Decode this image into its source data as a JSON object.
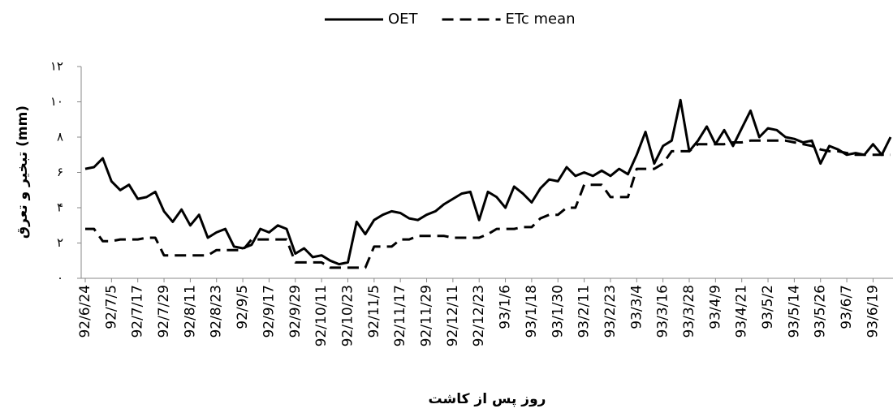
{
  "chart_data": {
    "type": "line",
    "x_label": "روز پس از کاشت",
    "y_label": "تبخیر و تعرق (mm)",
    "legend": "top",
    "categories": [
      "92/6/24",
      null,
      null,
      "92/7/5",
      null,
      null,
      "92/7/17",
      null,
      null,
      "92/7/29",
      null,
      null,
      "92/8/11",
      null,
      null,
      "92/8/23",
      null,
      null,
      "92/9/5",
      null,
      null,
      "92/9/17",
      null,
      null,
      "92/9/29",
      null,
      null,
      "92/10/11",
      null,
      null,
      "92/10/23",
      null,
      null,
      "92/11/5",
      null,
      null,
      "92/11/17",
      null,
      null,
      "92/11/29",
      null,
      null,
      "92/12/11",
      null,
      null,
      "92/12/23",
      null,
      null,
      "93/1/6",
      null,
      null,
      "93/1/18",
      null,
      null,
      "93/1/30",
      null,
      null,
      "93/2/11",
      null,
      null,
      "93/2/23",
      null,
      null,
      "93/3/4",
      null,
      null,
      "93/3/16",
      null,
      null,
      "93/3/28",
      null,
      null,
      "93/4/9",
      null,
      null,
      "93/4/21",
      null,
      null,
      "93/5/2",
      null,
      null,
      "93/5/14",
      null,
      null,
      "93/5/26",
      null,
      null,
      "93/6/7",
      null,
      null,
      "93/6/19",
      null,
      null
    ],
    "series": [
      {
        "name": "OET",
        "color": "#000000",
        "dash": false,
        "values": [
          6.2,
          6.3,
          6.8,
          5.5,
          5.0,
          5.3,
          4.5,
          4.6,
          4.9,
          3.8,
          3.2,
          3.9,
          3.0,
          3.6,
          2.3,
          2.6,
          2.8,
          1.8,
          1.7,
          1.9,
          2.8,
          2.6,
          3.0,
          2.8,
          1.4,
          1.7,
          1.2,
          1.3,
          1.0,
          0.8,
          0.9,
          3.2,
          2.5,
          3.3,
          3.6,
          3.8,
          3.7,
          3.4,
          3.3,
          3.6,
          3.8,
          4.2,
          4.5,
          4.8,
          4.9,
          3.3,
          4.9,
          4.6,
          4.0,
          5.2,
          4.8,
          4.3,
          5.1,
          5.6,
          5.5,
          6.3,
          5.8,
          6.0,
          5.8,
          6.1,
          5.8,
          6.2,
          5.9,
          7.0,
          8.3,
          6.5,
          7.5,
          7.8,
          10.1,
          7.2,
          7.8,
          8.6,
          7.6,
          8.4,
          7.5,
          8.5,
          9.5,
          8.0,
          8.5,
          8.4,
          8.0,
          7.9,
          7.7,
          7.8,
          6.5,
          7.5,
          7.3,
          7.0,
          7.1,
          7.0,
          7.6,
          7.0,
          8.0
        ]
      },
      {
        "name": "ETc mean",
        "color": "#000000",
        "dash": true,
        "values": [
          2.8,
          2.8,
          2.1,
          2.1,
          2.2,
          2.2,
          2.2,
          2.3,
          2.3,
          1.3,
          1.3,
          1.3,
          1.3,
          1.3,
          1.3,
          1.6,
          1.6,
          1.6,
          1.6,
          2.2,
          2.2,
          2.2,
          2.2,
          2.2,
          0.9,
          0.9,
          0.9,
          0.9,
          0.6,
          0.6,
          0.6,
          0.6,
          0.6,
          1.8,
          1.8,
          1.8,
          2.2,
          2.2,
          2.4,
          2.4,
          2.4,
          2.4,
          2.3,
          2.3,
          2.3,
          2.3,
          2.5,
          2.8,
          2.8,
          2.8,
          2.9,
          2.9,
          3.4,
          3.6,
          3.6,
          4.0,
          4.0,
          5.3,
          5.3,
          5.3,
          4.6,
          4.6,
          4.6,
          6.2,
          6.2,
          6.2,
          6.5,
          7.2,
          7.2,
          7.2,
          7.6,
          7.6,
          7.6,
          7.6,
          7.7,
          7.7,
          7.8,
          7.8,
          7.8,
          7.8,
          7.8,
          7.7,
          7.6,
          7.5,
          7.3,
          7.2,
          7.2,
          7.1,
          7.0,
          7.0,
          7.0,
          7.0,
          7.0
        ]
      }
    ],
    "ylim": [
      0,
      12
    ],
    "yticks": [
      {
        "value": 0,
        "label": "۰"
      },
      {
        "value": 2,
        "label": "۲"
      },
      {
        "value": 4,
        "label": "۴"
      },
      {
        "value": 6,
        "label": "۶"
      },
      {
        "value": 8,
        "label": "۸"
      },
      {
        "value": 10,
        "label": "۱۰"
      },
      {
        "value": 12,
        "label": "۱۲"
      }
    ]
  }
}
